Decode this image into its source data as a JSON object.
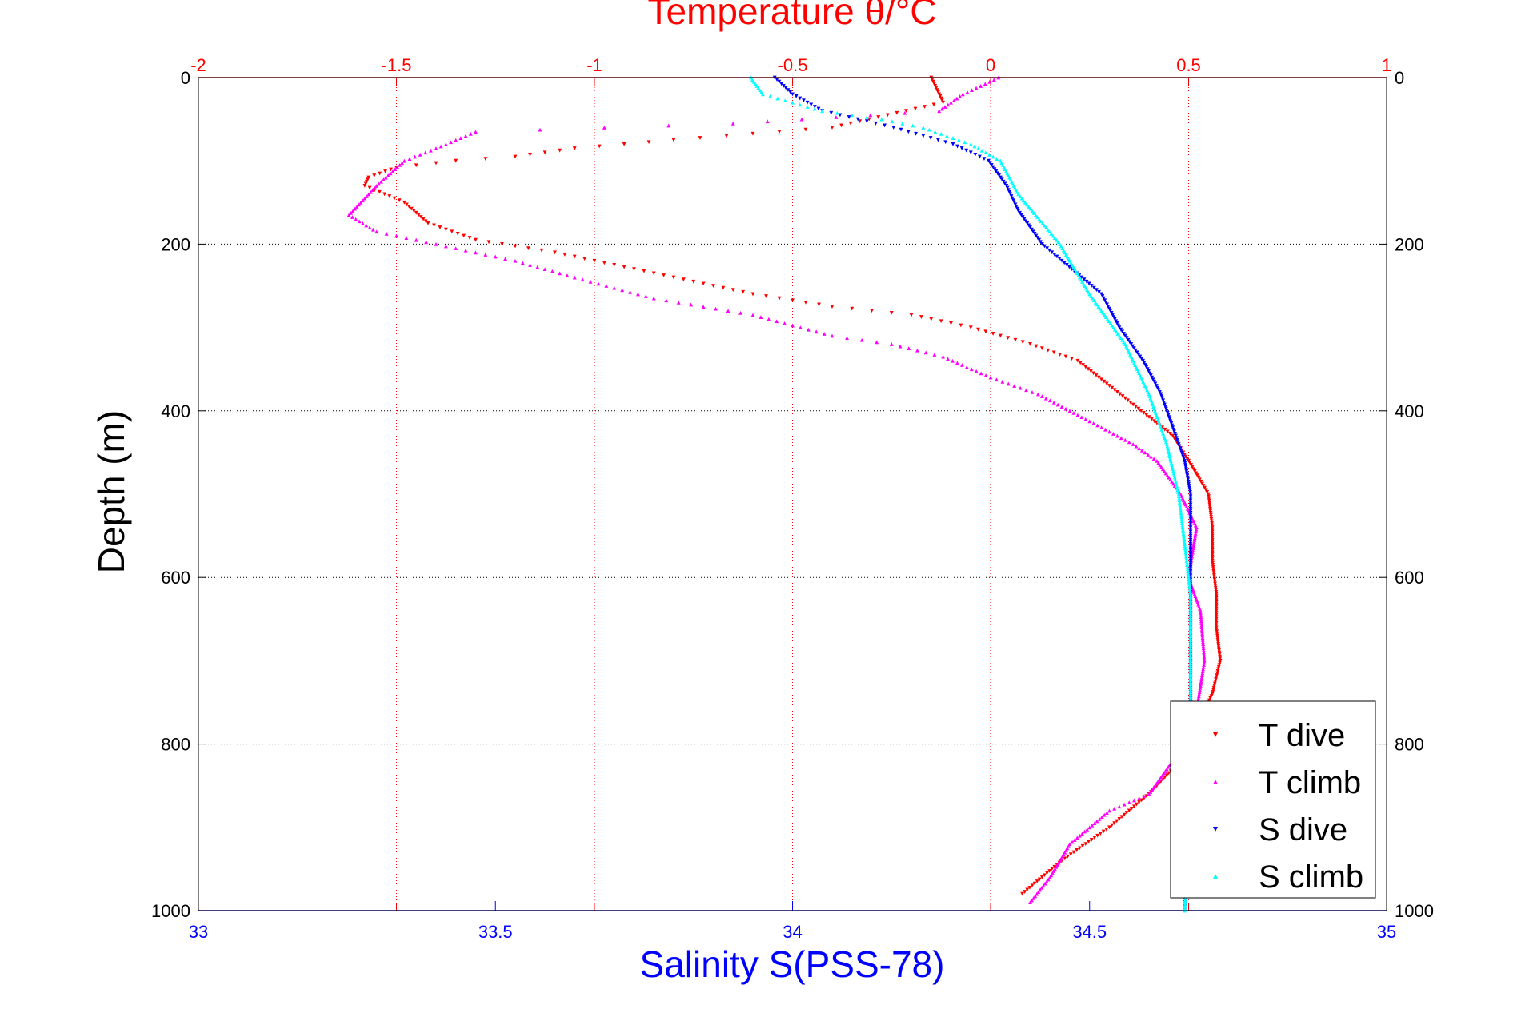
{
  "chart_data": {
    "type": "scatter",
    "title": "Temperature θ/°C",
    "top_axis": {
      "label": "Temperature θ/°C",
      "range": [
        -2,
        1
      ],
      "ticks": [
        -2,
        -1.5,
        -1,
        -0.5,
        0,
        0.5,
        1
      ],
      "tick_labels": [
        "-2",
        "-1.5",
        "-1",
        "-0.5",
        "0",
        "0.5",
        "1"
      ],
      "color": "#ff0000"
    },
    "bottom_axis": {
      "label": "Salinity S(PSS-78)",
      "range": [
        33,
        35
      ],
      "ticks": [
        33,
        33.5,
        34,
        34.5,
        35
      ],
      "tick_labels": [
        "33",
        "33.5",
        "34",
        "34.5",
        "35"
      ],
      "color": "#0000ff"
    },
    "y_axis": {
      "label": "Depth (m)",
      "range": [
        0,
        1000
      ],
      "reversed": true,
      "ticks": [
        0,
        200,
        400,
        600,
        800,
        1000
      ],
      "tick_labels": [
        "0",
        "200",
        "400",
        "600",
        "800",
        "1000"
      ]
    },
    "grid": true,
    "legend_position": "bottom-right",
    "series": [
      {
        "name": "T dive",
        "axis": "top",
        "color": "#ff0000",
        "marker": "triangle-down",
        "x": [
          -0.15,
          -0.12,
          -0.4,
          -0.8,
          -1.05,
          -1.2,
          -1.35,
          -1.5,
          -1.57,
          -1.58,
          -1.48,
          -1.42,
          -1.3,
          -1.1,
          -0.95,
          -0.8,
          -0.6,
          -0.4,
          -0.2,
          -0.05,
          0.1,
          0.22,
          0.3,
          0.38,
          0.46,
          0.5,
          0.55,
          0.56,
          0.56,
          0.57,
          0.57,
          0.58,
          0.56,
          0.52,
          0.48,
          0.4,
          0.3,
          0.18,
          0.08
        ],
        "y": [
          0,
          30,
          60,
          75,
          85,
          95,
          100,
          108,
          120,
          130,
          150,
          175,
          195,
          210,
          225,
          240,
          260,
          275,
          285,
          300,
          320,
          340,
          370,
          400,
          430,
          460,
          500,
          540,
          580,
          620,
          660,
          700,
          740,
          780,
          820,
          860,
          900,
          940,
          980
        ]
      },
      {
        "name": "T climb",
        "axis": "top",
        "color": "#ff00ff",
        "marker": "triangle-up",
        "x": [
          0.02,
          -0.07,
          -0.13,
          -0.65,
          -1.3,
          -1.4,
          -1.48,
          -1.55,
          -1.62,
          -1.55,
          -1.4,
          -1.2,
          -1.05,
          -0.85,
          -0.6,
          -0.4,
          -0.25,
          -0.12,
          0,
          0.12,
          0.2,
          0.28,
          0.36,
          0.42,
          0.45,
          0.48,
          0.52,
          0.5,
          0.53,
          0.54,
          0.52,
          0.46,
          0.4,
          0.3,
          0.2,
          0.15,
          0.1
        ],
        "y": [
          0,
          20,
          40,
          55,
          65,
          85,
          100,
          130,
          165,
          185,
          200,
          220,
          240,
          265,
          285,
          310,
          320,
          335,
          360,
          380,
          400,
          420,
          440,
          460,
          480,
          500,
          540,
          600,
          640,
          700,
          760,
          820,
          860,
          880,
          920,
          960,
          990
        ]
      },
      {
        "name": "S dive",
        "axis": "bottom",
        "color": "#0000ff",
        "marker": "triangle-down",
        "x": [
          33.97,
          34.0,
          34.05,
          34.17,
          34.27,
          34.33,
          34.36,
          34.38,
          34.42,
          34.47,
          34.52,
          34.55,
          34.59,
          34.62,
          34.64,
          34.66,
          34.67,
          34.67,
          34.67,
          34.67,
          34.67,
          34.67,
          34.67,
          34.67,
          34.67,
          34.66
        ],
        "y": [
          0,
          20,
          40,
          60,
          80,
          100,
          130,
          160,
          200,
          230,
          260,
          300,
          340,
          380,
          420,
          460,
          500,
          550,
          600,
          650,
          700,
          750,
          800,
          850,
          900,
          1000
        ]
      },
      {
        "name": "S climb",
        "axis": "bottom",
        "color": "#00ffff",
        "marker": "triangle-up",
        "x": [
          33.93,
          33.95,
          34.05,
          34.15,
          34.22,
          34.3,
          34.35,
          34.38,
          34.45,
          34.5,
          34.56,
          34.6,
          34.63,
          34.65,
          34.66,
          34.67,
          34.67,
          34.67,
          34.67,
          34.67,
          34.66
        ],
        "y": [
          0,
          20,
          40,
          50,
          60,
          80,
          100,
          140,
          200,
          260,
          320,
          380,
          440,
          500,
          560,
          620,
          680,
          740,
          800,
          900,
          1000
        ]
      }
    ]
  }
}
